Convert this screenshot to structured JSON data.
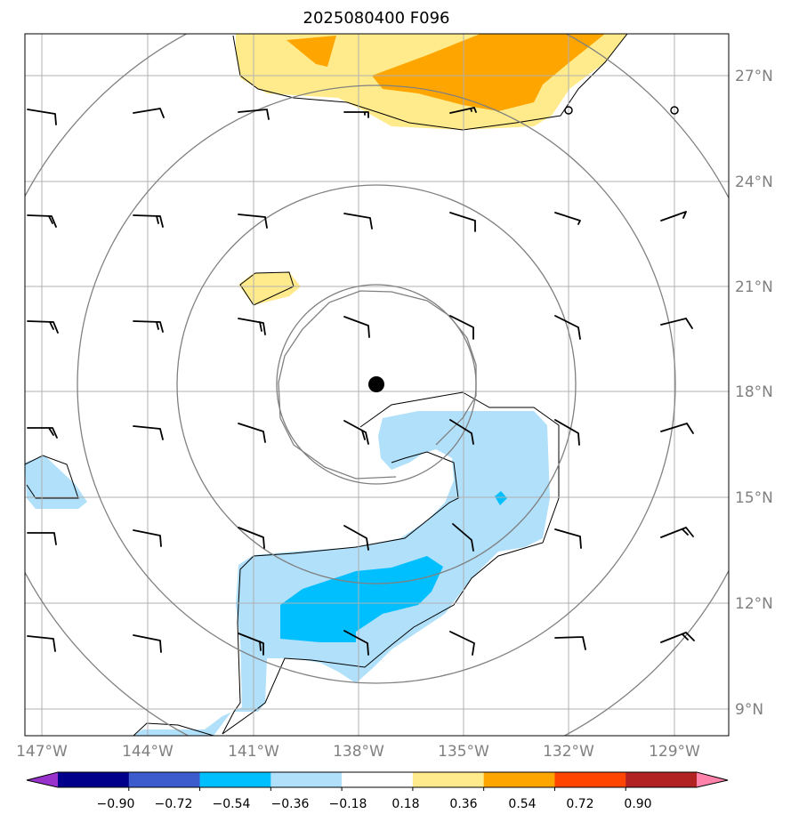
{
  "title": "2025080400 F096",
  "map": {
    "lon_labels": [
      "147°W",
      "144°W",
      "141°W",
      "138°W",
      "135°W",
      "132°W",
      "129°W"
    ],
    "lat_labels": [
      "27°N",
      "24°N",
      "21°N",
      "18°N",
      "15°N",
      "12°N",
      "9°N"
    ],
    "gridline_color": "#b0b0b0",
    "tick_label_color": "#808080",
    "center_marker": {
      "lon": -137.5,
      "lat": 18.2,
      "label": ""
    },
    "range_rings": "concentric gray circles around center marker"
  },
  "colorbar": {
    "tick_labels": [
      "−0.90",
      "−0.72",
      "−0.54",
      "−0.36",
      "−0.18",
      "0.18",
      "0.36",
      "0.54",
      "0.72",
      "0.90"
    ],
    "colors": [
      "#9932cc",
      "#00008b",
      "#3c5bcd",
      "#00bfff",
      "#b0e0fa",
      "#ffffff",
      "#ffeb8c",
      "#ffa500",
      "#ff4500",
      "#b22222",
      "#ff82ab"
    ]
  }
}
